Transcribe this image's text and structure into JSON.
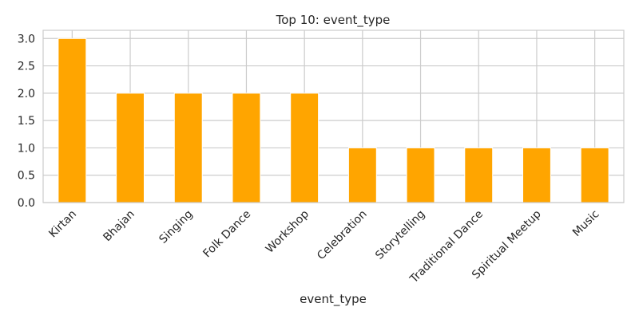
{
  "chart_data": {
    "type": "bar",
    "title": "Top 10: event_type",
    "xlabel": "event_type",
    "ylabel": "",
    "categories": [
      "Kirtan",
      "Bhajan",
      "Singing",
      "Folk Dance",
      "Workshop",
      "Celebration",
      "Storytelling",
      "Traditional Dance",
      "Spiritual Meetup",
      "Music"
    ],
    "values": [
      3,
      2,
      2,
      2,
      2,
      1,
      1,
      1,
      1,
      1
    ],
    "ylim": [
      0,
      3.15
    ],
    "yticks": [
      "0.0",
      "0.5",
      "1.0",
      "1.5",
      "2.0",
      "2.5",
      "3.0"
    ],
    "grid": true,
    "legend": "none",
    "bar_color": "#FFA500",
    "grid_color": "#CCCCCC",
    "frame_color": "#CCCCCC"
  }
}
